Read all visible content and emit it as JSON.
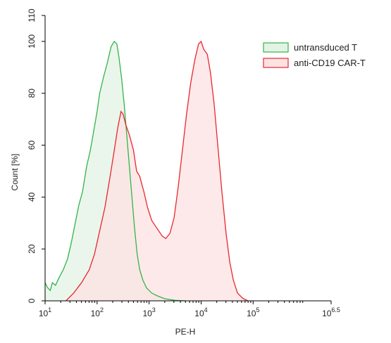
{
  "chart_data": {
    "type": "area",
    "title": "",
    "xlabel": "PE-H",
    "ylabel": "Count [%]",
    "x_scale": "log10",
    "xlim": [
      1,
      6.5
    ],
    "ylim": [
      0,
      110
    ],
    "grid": false,
    "legend_position": "top-right",
    "x_ticks": [
      {
        "value": 1,
        "base": "10",
        "exp": "1"
      },
      {
        "value": 2,
        "base": "10",
        "exp": "2"
      },
      {
        "value": 3,
        "base": "10",
        "exp": "3"
      },
      {
        "value": 4,
        "base": "10",
        "exp": "4"
      },
      {
        "value": 5,
        "base": "10",
        "exp": "5"
      },
      {
        "value": 6.5,
        "base": "10",
        "exp": "6.5"
      }
    ],
    "y_ticks": [
      {
        "value": 0,
        "label": "0"
      },
      {
        "value": 20,
        "label": "20"
      },
      {
        "value": 40,
        "label": "40"
      },
      {
        "value": 60,
        "label": "60"
      },
      {
        "value": 80,
        "label": "80"
      },
      {
        "value": 100,
        "label": "100"
      },
      {
        "value": 110,
        "label": "110"
      }
    ],
    "series": [
      {
        "name": "untransduced T",
        "stroke": "#33b44a",
        "fill": "#e3f3e6",
        "points": [
          [
            1.0,
            7
          ],
          [
            1.05,
            5
          ],
          [
            1.1,
            4
          ],
          [
            1.14,
            7
          ],
          [
            1.2,
            6
          ],
          [
            1.27,
            9
          ],
          [
            1.35,
            12
          ],
          [
            1.43,
            16
          ],
          [
            1.5,
            22
          ],
          [
            1.58,
            30
          ],
          [
            1.65,
            37
          ],
          [
            1.72,
            42
          ],
          [
            1.8,
            52
          ],
          [
            1.87,
            58
          ],
          [
            1.94,
            66
          ],
          [
            2.0,
            73
          ],
          [
            2.05,
            80
          ],
          [
            2.12,
            86
          ],
          [
            2.2,
            92
          ],
          [
            2.27,
            98
          ],
          [
            2.33,
            100
          ],
          [
            2.38,
            99
          ],
          [
            2.42,
            94
          ],
          [
            2.47,
            86
          ],
          [
            2.52,
            76
          ],
          [
            2.57,
            64
          ],
          [
            2.62,
            52
          ],
          [
            2.67,
            40
          ],
          [
            2.72,
            28
          ],
          [
            2.77,
            18
          ],
          [
            2.82,
            12
          ],
          [
            2.88,
            8
          ],
          [
            2.95,
            5
          ],
          [
            3.05,
            3
          ],
          [
            3.15,
            2
          ],
          [
            3.3,
            0.8
          ],
          [
            3.5,
            0.2
          ],
          [
            3.7,
            0
          ]
        ]
      },
      {
        "name": "anti-CD19 CAR-T",
        "stroke": "#e8272f",
        "fill": "#fde2e3",
        "points": [
          [
            1.4,
            0
          ],
          [
            1.55,
            3
          ],
          [
            1.7,
            7
          ],
          [
            1.85,
            12
          ],
          [
            1.95,
            18
          ],
          [
            2.05,
            27
          ],
          [
            2.15,
            36
          ],
          [
            2.25,
            48
          ],
          [
            2.33,
            58
          ],
          [
            2.4,
            67
          ],
          [
            2.46,
            73
          ],
          [
            2.5,
            72
          ],
          [
            2.55,
            68
          ],
          [
            2.62,
            64
          ],
          [
            2.7,
            58
          ],
          [
            2.76,
            50
          ],
          [
            2.82,
            48
          ],
          [
            2.9,
            42
          ],
          [
            2.97,
            36
          ],
          [
            3.05,
            31
          ],
          [
            3.15,
            28
          ],
          [
            3.25,
            25
          ],
          [
            3.32,
            24
          ],
          [
            3.4,
            26
          ],
          [
            3.48,
            32
          ],
          [
            3.56,
            44
          ],
          [
            3.64,
            58
          ],
          [
            3.72,
            72
          ],
          [
            3.8,
            84
          ],
          [
            3.88,
            93
          ],
          [
            3.95,
            99
          ],
          [
            4.0,
            100
          ],
          [
            4.05,
            97
          ],
          [
            4.12,
            95
          ],
          [
            4.18,
            88
          ],
          [
            4.25,
            76
          ],
          [
            4.32,
            60
          ],
          [
            4.4,
            42
          ],
          [
            4.48,
            26
          ],
          [
            4.55,
            15
          ],
          [
            4.62,
            8
          ],
          [
            4.7,
            3
          ],
          [
            4.8,
            1
          ],
          [
            4.9,
            0
          ]
        ]
      }
    ]
  }
}
